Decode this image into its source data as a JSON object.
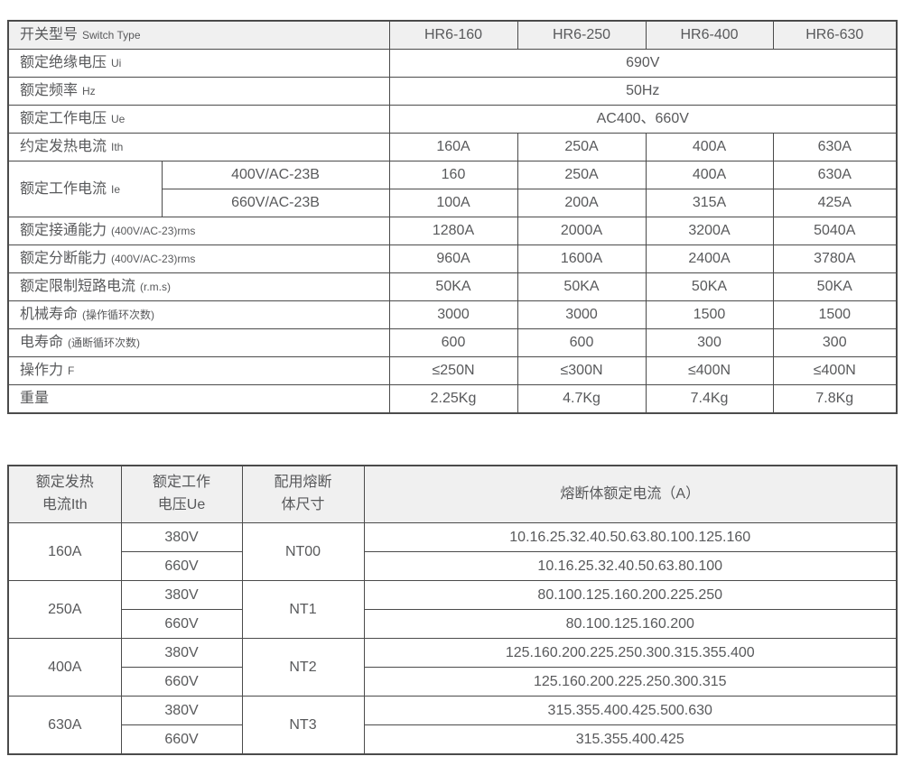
{
  "colors": {
    "border": "#4b4b4b",
    "text": "#58595b",
    "header_bg": "#f0f0f0",
    "page_bg": "#ffffff"
  },
  "switch_table": {
    "header_row": {
      "label": "开关型号",
      "note": "Switch Type",
      "models": [
        "HR6-160",
        "HR6-250",
        "HR6-400",
        "HR6-630"
      ]
    },
    "rows": [
      {
        "type": "span",
        "label": "额定绝缘电压",
        "note": "Ui",
        "value": "690V"
      },
      {
        "type": "span",
        "label": "额定频率",
        "note": "Hz",
        "value": "50Hz"
      },
      {
        "type": "span",
        "label": "额定工作电压",
        "note": "Ue",
        "value": "AC400、660V"
      },
      {
        "type": "cells",
        "label": "约定发热电流",
        "note": "Ith",
        "values": [
          "160A",
          "250A",
          "400A",
          "630A"
        ]
      },
      {
        "type": "group",
        "label": "额定工作电流",
        "note": "Ie",
        "subrows": [
          {
            "sub": "400V/AC-23B",
            "values": [
              "160",
              "250A",
              "400A",
              "630A"
            ]
          },
          {
            "sub": "660V/AC-23B",
            "values": [
              "100A",
              "200A",
              "315A",
              "425A"
            ]
          }
        ]
      },
      {
        "type": "cells",
        "label": "额定接通能力",
        "note": "(400V/AC-23)rms",
        "values": [
          "1280A",
          "2000A",
          "3200A",
          "5040A"
        ]
      },
      {
        "type": "cells",
        "label": "额定分断能力",
        "note": "(400V/AC-23)rms",
        "values": [
          "960A",
          "1600A",
          "2400A",
          "3780A"
        ]
      },
      {
        "type": "cells",
        "label": "额定限制短路电流",
        "note": "(r.m.s)",
        "values": [
          "50KA",
          "50KA",
          "50KA",
          "50KA"
        ]
      },
      {
        "type": "cells",
        "label": "机械寿命",
        "note": "(操作循环次数)",
        "values": [
          "3000",
          "3000",
          "1500",
          "1500"
        ]
      },
      {
        "type": "cells",
        "label": "电寿命",
        "note": "(通断循环次数)",
        "values": [
          "600",
          "600",
          "300",
          "300"
        ]
      },
      {
        "type": "cells",
        "label": "操作力",
        "note": "F",
        "values": [
          "≤250N",
          "≤300N",
          "≤400N",
          "≤400N"
        ]
      },
      {
        "type": "cells",
        "label": "重量",
        "note": "",
        "values": [
          "2.25Kg",
          "4.7Kg",
          "7.4Kg",
          "7.8Kg"
        ]
      }
    ]
  },
  "fuse_table": {
    "headers": [
      {
        "lines": [
          "额定发热",
          "电流Ith"
        ]
      },
      {
        "lines": [
          "额定工作",
          "电压Ue"
        ]
      },
      {
        "lines": [
          "配用熔断",
          "体尺寸"
        ]
      },
      {
        "lines": [
          "熔断体额定电流（A）"
        ]
      }
    ],
    "groups": [
      {
        "current": "160A",
        "fuse_size": "NT00",
        "rows": [
          {
            "voltage": "380V",
            "ratings": "10.16.25.32.40.50.63.80.100.125.160"
          },
          {
            "voltage": "660V",
            "ratings": "10.16.25.32.40.50.63.80.100"
          }
        ]
      },
      {
        "current": "250A",
        "fuse_size": "NT1",
        "rows": [
          {
            "voltage": "380V",
            "ratings": "80.100.125.160.200.225.250"
          },
          {
            "voltage": "660V",
            "ratings": "80.100.125.160.200"
          }
        ]
      },
      {
        "current": "400A",
        "fuse_size": "NT2",
        "rows": [
          {
            "voltage": "380V",
            "ratings": "125.160.200.225.250.300.315.355.400"
          },
          {
            "voltage": "660V",
            "ratings": "125.160.200.225.250.300.315"
          }
        ]
      },
      {
        "current": "630A",
        "fuse_size": "NT3",
        "rows": [
          {
            "voltage": "380V",
            "ratings": "315.355.400.425.500.630"
          },
          {
            "voltage": "660V",
            "ratings": "315.355.400.425"
          }
        ]
      }
    ]
  }
}
